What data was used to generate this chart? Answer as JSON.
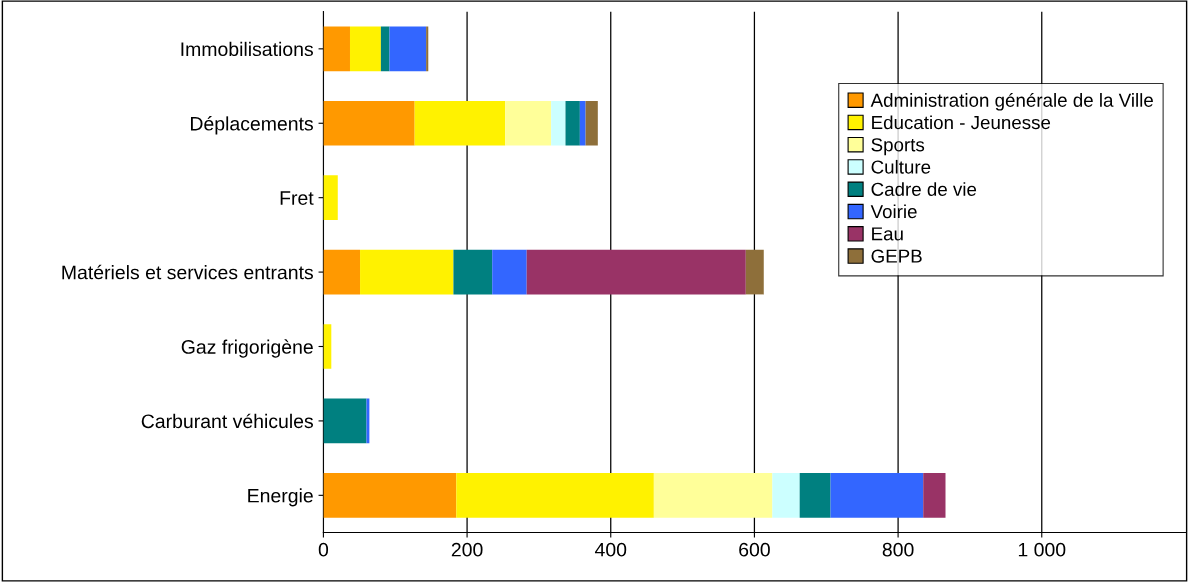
{
  "chart_data": {
    "type": "bar",
    "orientation": "horizontal",
    "stacked": true,
    "categories": [
      "Immobilisations",
      "Déplacements",
      "Fret",
      "Matériels et services entrants",
      "Gaz frigorigène",
      "Carburant véhicules",
      "Energie"
    ],
    "series": [
      {
        "name": "Administration générale de la Ville",
        "color": "#ff9900",
        "values": [
          37,
          127,
          null,
          51,
          null,
          null,
          185
        ]
      },
      {
        "name": "Education - Jeunesse",
        "color": "#fff200",
        "values": [
          43,
          126,
          20,
          130,
          11,
          null,
          275
        ]
      },
      {
        "name": "Sports",
        "color": "#ffff99",
        "values": [
          null,
          64,
          null,
          null,
          null,
          null,
          165
        ]
      },
      {
        "name": "Culture",
        "color": "#ccffff",
        "values": [
          null,
          20,
          null,
          null,
          null,
          null,
          38
        ]
      },
      {
        "name": "Cadre de vie",
        "color": "#008080",
        "values": [
          12,
          20,
          null,
          54,
          null,
          60,
          43
        ]
      },
      {
        "name": "Voirie",
        "color": "#3366ff",
        "values": [
          51,
          8,
          null,
          48,
          null,
          4,
          129
        ]
      },
      {
        "name": "Eau",
        "color": "#993366",
        "values": [
          null,
          null,
          null,
          305,
          null,
          null,
          31
        ]
      },
      {
        "name": "GEPB",
        "color": "#8e6f3a",
        "values": [
          3,
          17,
          null,
          25,
          null,
          null,
          null
        ]
      }
    ],
    "xlim": [
      0,
      1200
    ],
    "xticks": [
      0,
      200,
      400,
      600,
      800,
      {
        "value": 1000,
        "label": "1 000"
      }
    ],
    "grid": "x",
    "legend": "top right"
  }
}
